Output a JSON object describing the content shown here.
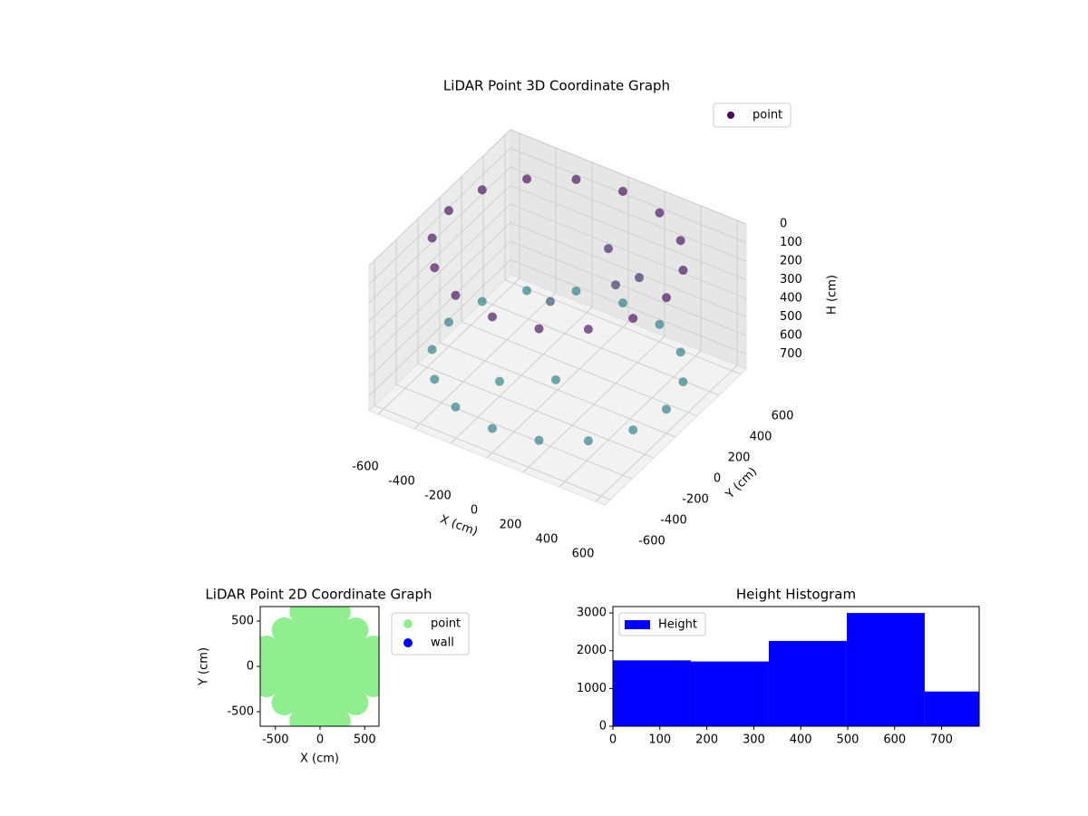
{
  "chart_data": [
    {
      "type": "scatter3d",
      "title": "LiDAR Point 3D Coordinate Graph",
      "xlabel": "X (cm)",
      "ylabel": "Y (cm)",
      "zlabel": "H (cm)",
      "xlim": [
        -650,
        650
      ],
      "ylim": [
        -650,
        650
      ],
      "zlim": [
        0,
        780
      ],
      "zinvert": true,
      "xticks": [
        -600,
        -400,
        -200,
        0,
        200,
        400,
        600
      ],
      "yticks": [
        -600,
        -400,
        -200,
        0,
        200,
        400,
        600
      ],
      "zticks": [
        0,
        100,
        200,
        300,
        400,
        500,
        600,
        700
      ],
      "grid": true,
      "legend": "upper right",
      "cmap": [
        "#440154",
        "#21918c"
      ],
      "series": [
        {
          "name": "point",
          "color": "#440154",
          "x": [
            600,
            554,
            424,
            230,
            0,
            -230,
            -424,
            -554,
            -600,
            -554,
            -424,
            -230,
            0,
            230,
            424,
            554,
            600,
            554,
            424,
            230,
            0,
            -230,
            -424,
            -554,
            -600,
            -554,
            -424,
            -230,
            0,
            230,
            424,
            554,
            100,
            200,
            -100,
            300,
            -200,
            50
          ],
          "y": [
            0,
            230,
            424,
            554,
            600,
            554,
            424,
            230,
            0,
            -230,
            -424,
            -554,
            -600,
            -554,
            -424,
            -230,
            0,
            230,
            424,
            554,
            600,
            554,
            424,
            230,
            0,
            -230,
            -424,
            -554,
            -600,
            -554,
            -424,
            -230,
            300,
            200,
            100,
            250,
            -200,
            -100
          ],
          "z": [
            50,
            50,
            50,
            50,
            50,
            50,
            50,
            50,
            50,
            50,
            50,
            50,
            50,
            50,
            50,
            50,
            650,
            650,
            650,
            650,
            650,
            650,
            650,
            650,
            650,
            650,
            650,
            650,
            650,
            650,
            650,
            650,
            150,
            250,
            400,
            200,
            700,
            650
          ]
        }
      ]
    },
    {
      "type": "scatter",
      "title": "LiDAR Point 2D Coordinate Graph",
      "xlabel": "X (cm)",
      "ylabel": "Y (cm)",
      "xlim": [
        -670,
        660
      ],
      "ylim": [
        -660,
        660
      ],
      "xticks": [
        -500,
        0,
        500
      ],
      "yticks": [
        -500,
        0,
        500
      ],
      "legend": "outside right",
      "series": [
        {
          "name": "point",
          "color": "#90ee90",
          "x": [
            -200,
            0,
            200,
            -400,
            -200,
            0,
            200,
            400,
            -600,
            -400,
            -200,
            0,
            200,
            400,
            600,
            -600,
            -400,
            -200,
            0,
            200,
            400,
            600,
            -600,
            -400,
            -200,
            0,
            200,
            400,
            600,
            -400,
            -200,
            0,
            200,
            400,
            -200,
            0,
            200
          ],
          "y": [
            600,
            600,
            600,
            400,
            400,
            400,
            400,
            400,
            200,
            200,
            200,
            200,
            200,
            200,
            200,
            0,
            0,
            0,
            0,
            0,
            0,
            0,
            -200,
            -200,
            -200,
            -200,
            -200,
            -200,
            -200,
            -400,
            -400,
            -400,
            -400,
            -400,
            -600,
            -600,
            -600
          ]
        },
        {
          "name": "wall",
          "color": "#0000ff",
          "x": [],
          "y": []
        }
      ]
    },
    {
      "type": "histogram",
      "title": "Height Histogram",
      "bins": [
        0,
        166,
        332,
        498,
        664,
        780
      ],
      "values": [
        1745,
        1715,
        2260,
        3000,
        920
      ],
      "xlim": [
        0,
        780
      ],
      "ylim": [
        0,
        3170
      ],
      "xticks": [
        0,
        100,
        200,
        300,
        400,
        500,
        600,
        700
      ],
      "yticks": [
        0,
        1000,
        2000,
        3000
      ],
      "legend": "upper left",
      "series_name": "Height",
      "color": "#0000ff"
    }
  ]
}
